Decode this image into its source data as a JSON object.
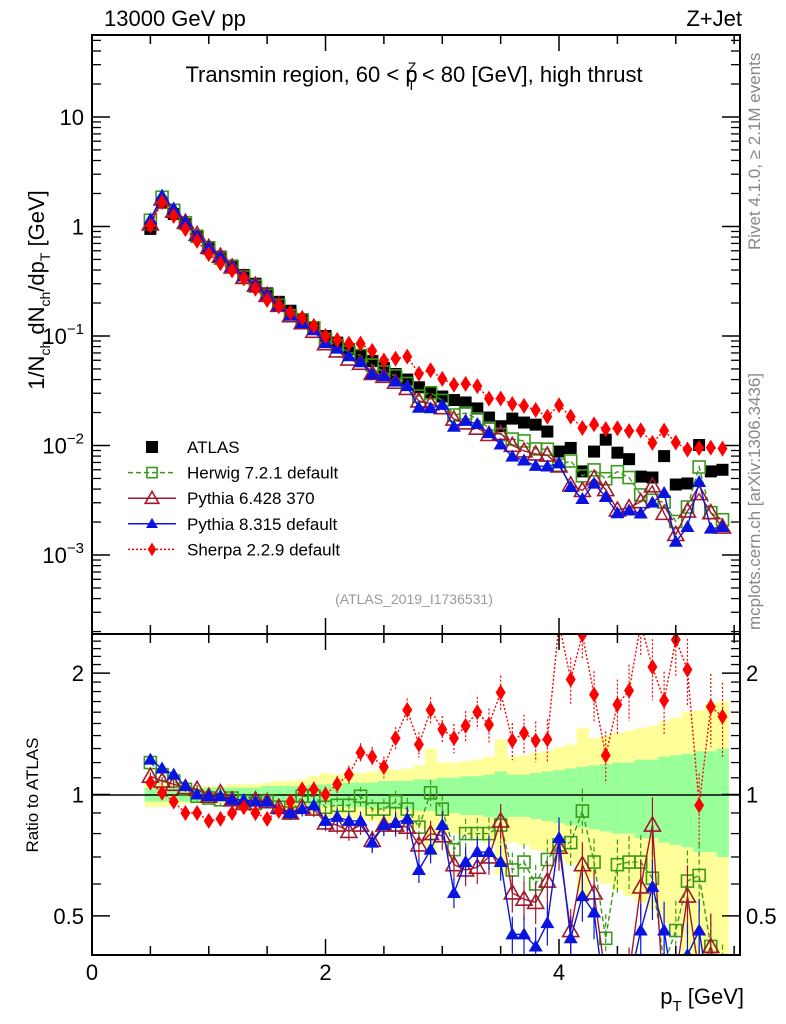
{
  "header": {
    "left": "13000 GeV pp",
    "right": "Z+Jet",
    "title_prefix": "Transmin region, 60 < p",
    "title_sup": "Z",
    "title_sub": "T",
    "title_suffix": " < 80 [GeV], high thrust"
  },
  "side_notes": {
    "rivet": "Rivet 4.1.0, ≥ 2.1M events",
    "mcplots": "mcplots.cern.ch [arXiv:1306.3436]"
  },
  "reference": "(ATLAS_2019_I1736531)",
  "colors": {
    "atlas": "#000000",
    "herwig": "#3a9a1a",
    "pythia6": "#a0182c",
    "pythia8": "#0a14e0",
    "sherpa": "#ff0000",
    "band_inner": "#99ff99",
    "band_outer": "#ffff99"
  },
  "chart_data": [
    {
      "type": "scatter",
      "panel": "main",
      "title": "Transmin region, 60 < pT^Z < 80 [GeV], high thrust",
      "xlabel": "p_T [GeV]",
      "ylabel": "1/N_ch dN_ch/dp_T [GeV]",
      "yscale": "log",
      "xlim": [
        0,
        5.55
      ],
      "ylim": [
        0.00019,
        56
      ],
      "x_ticks": [
        "0",
        "2",
        "4"
      ],
      "y_ticks": [
        "10^{-3}",
        "10^{-2}",
        "10^{-1}",
        "1",
        "10"
      ],
      "legend_position": "lower-left",
      "x": [
        0.5,
        0.6,
        0.7,
        0.8,
        0.9,
        1.0,
        1.1,
        1.2,
        1.3,
        1.4,
        1.5,
        1.6,
        1.7,
        1.8,
        1.9,
        2.0,
        2.1,
        2.2,
        2.3,
        2.4,
        2.5,
        2.6,
        2.7,
        2.8,
        2.9,
        3.0,
        3.1,
        3.2,
        3.3,
        3.4,
        3.5,
        3.6,
        3.7,
        3.8,
        3.9,
        4.0,
        4.1,
        4.2,
        4.3,
        4.4,
        4.5,
        4.6,
        4.7,
        4.8,
        4.9,
        5.0,
        5.1,
        5.2,
        5.3,
        5.4
      ],
      "series": [
        {
          "name": "ATLAS",
          "key": "atlas",
          "values": [
            0.95,
            1.65,
            1.3,
            1.05,
            0.82,
            0.65,
            0.53,
            0.44,
            0.36,
            0.3,
            0.245,
            0.205,
            0.17,
            0.142,
            0.12,
            0.1,
            0.087,
            0.076,
            0.067,
            0.059,
            0.051,
            0.045,
            0.04,
            0.034,
            0.03,
            0.028,
            0.026,
            0.0247,
            0.0218,
            0.018,
            0.015,
            0.0176,
            0.0162,
            0.0155,
            0.0134,
            0.0088,
            0.0095,
            0.0058,
            0.0088,
            0.0113,
            0.0086,
            0.0075,
            0.0052,
            0.0051,
            0.008,
            0.0044,
            0.0045,
            0.0101,
            0.0058,
            0.006
          ]
        },
        {
          "name": "Herwig 7.2.1 default",
          "key": "herwig",
          "ratio": [
            1.2,
            1.12,
            1.08,
            1.03,
            0.99,
            0.98,
            0.97,
            0.98,
            0.96,
            0.95,
            0.96,
            0.93,
            0.9,
            0.99,
            0.99,
            0.93,
            0.94,
            0.94,
            0.99,
            0.92,
            0.92,
            0.96,
            0.92,
            0.83,
            1.01,
            0.92,
            0.73,
            0.8,
            0.8,
            0.8,
            0.84,
            0.65,
            0.68,
            0.6,
            0.69,
            0.75,
            0.76,
            0.91,
            0.68,
            0.44,
            0.67,
            0.68,
            0.68,
            0.62,
            0.38,
            0.46,
            0.61,
            0.63,
            0.42,
            0.35
          ]
        },
        {
          "name": "Pythia 6.428 370",
          "key": "pythia6",
          "ratio": [
            1.11,
            1.08,
            1.06,
            1.04,
            1.03,
            0.99,
            1.01,
            0.97,
            0.95,
            0.97,
            0.96,
            0.93,
            0.9,
            0.93,
            0.92,
            0.85,
            0.84,
            0.81,
            0.84,
            0.77,
            0.84,
            0.84,
            0.83,
            0.75,
            0.8,
            0.79,
            0.67,
            0.65,
            0.66,
            0.7,
            0.86,
            0.57,
            0.55,
            0.54,
            0.61,
            0.74,
            0.46,
            0.67,
            0.57,
            0.35,
            0.3,
            0.36,
            0.59,
            0.84,
            0.3,
            0.35,
            0.56,
            0.36,
            0.42,
            0.3
          ]
        },
        {
          "name": "Pythia 8.315 default",
          "key": "pythia8",
          "ratio": [
            1.22,
            1.16,
            1.12,
            1.05,
            1.0,
            0.99,
            0.99,
            0.97,
            0.97,
            0.96,
            0.96,
            0.92,
            0.9,
            0.92,
            0.94,
            0.86,
            0.88,
            0.86,
            0.86,
            0.76,
            0.84,
            0.85,
            0.87,
            0.65,
            0.73,
            0.84,
            0.57,
            0.68,
            0.72,
            0.72,
            0.68,
            0.45,
            0.45,
            0.42,
            0.48,
            0.78,
            0.44,
            0.56,
            0.51,
            0.3,
            0.28,
            0.34,
            0.46,
            0.59,
            0.46,
            0.3,
            0.4,
            0.46,
            0.3,
            0.3
          ]
        },
        {
          "name": "Sherpa 2.2.9 default",
          "key": "sherpa",
          "ratio": [
            1.07,
            1.01,
            0.96,
            0.9,
            0.9,
            0.86,
            0.87,
            0.9,
            0.93,
            0.9,
            0.87,
            0.91,
            0.96,
            1.03,
            1.03,
            1.0,
            1.06,
            1.12,
            1.27,
            1.24,
            1.17,
            1.38,
            1.62,
            1.33,
            1.62,
            1.45,
            1.38,
            1.48,
            1.6,
            1.49,
            1.79,
            1.36,
            1.42,
            1.36,
            1.37,
            2.65,
            1.93,
            2.49,
            1.77,
            1.25,
            1.67,
            1.81,
            2.65,
            2.07,
            1.71,
            2.42,
            2.04,
            0.94,
            1.65,
            1.56
          ]
        }
      ]
    },
    {
      "type": "scatter",
      "panel": "ratio",
      "ylabel": "Ratio to ATLAS",
      "xlabel": "p_T [GeV]",
      "yscale": "log",
      "xlim": [
        0,
        5.55
      ],
      "ylim": [
        0.4,
        2.5
      ],
      "y_ticks": [
        "0.5",
        "1",
        "2"
      ],
      "x_ticks": [
        "0",
        "2",
        "4"
      ],
      "reference_line": 1,
      "band_inner_halfwidth": [
        0.04,
        0.04,
        0.04,
        0.04,
        0.04,
        0.04,
        0.04,
        0.04,
        0.04,
        0.04,
        0.05,
        0.05,
        0.05,
        0.05,
        0.06,
        0.06,
        0.06,
        0.07,
        0.07,
        0.07,
        0.08,
        0.08,
        0.08,
        0.09,
        0.09,
        0.1,
        0.1,
        0.11,
        0.11,
        0.12,
        0.14,
        0.12,
        0.12,
        0.13,
        0.14,
        0.15,
        0.16,
        0.17,
        0.18,
        0.19,
        0.2,
        0.2,
        0.22,
        0.22,
        0.24,
        0.25,
        0.26,
        0.28,
        0.28,
        0.3
      ],
      "band_outer_halfwidth": [
        0.07,
        0.07,
        0.06,
        0.05,
        0.05,
        0.05,
        0.05,
        0.06,
        0.06,
        0.06,
        0.07,
        0.08,
        0.08,
        0.09,
        0.11,
        0.13,
        0.12,
        0.13,
        0.13,
        0.14,
        0.16,
        0.15,
        0.16,
        0.18,
        0.3,
        0.2,
        0.2,
        0.21,
        0.22,
        0.24,
        0.37,
        0.24,
        0.25,
        0.27,
        0.28,
        0.31,
        0.33,
        0.46,
        0.38,
        0.4,
        0.42,
        0.44,
        0.46,
        0.48,
        0.52,
        0.55,
        0.6,
        0.62,
        0.68,
        0.7
      ]
    }
  ]
}
